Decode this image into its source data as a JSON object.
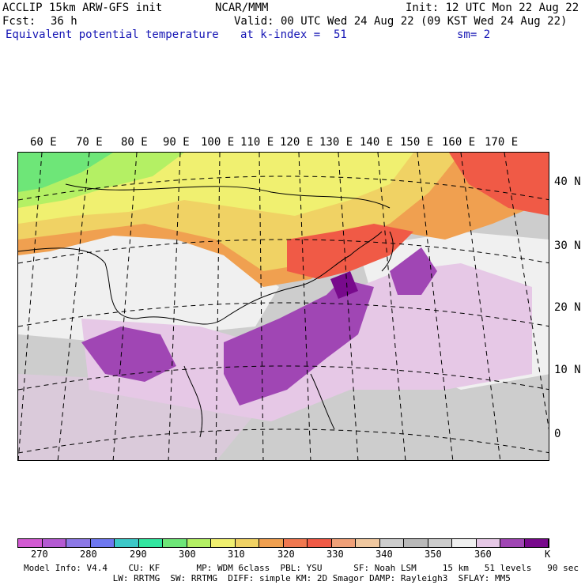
{
  "header": {
    "line1_left": "ACCLIP 15km ARW-GFS init",
    "line1_center": "NCAR/MMM",
    "line1_right": "Init: 12 UTC Mon 22 Aug 22",
    "fcst_label": "Fcst:",
    "fcst_value": "36 h",
    "valid": "Valid: 00 UTC Wed 24 Aug 22 (09 KST Wed 24 Aug 22)",
    "field": "Equivalent potential temperature",
    "level": "at k-index =  51",
    "smoothing": "sm= 2"
  },
  "map": {
    "lon_labels": [
      "60 E",
      "70 E",
      "80 E",
      "90 E",
      "100 E",
      "110 E",
      "120 E",
      "130 E",
      "140 E",
      "150 E",
      "160 E",
      "170 E"
    ],
    "lat_labels": [
      "40 N",
      "30 N",
      "20 N",
      "10 N",
      "0"
    ]
  },
  "colorbar": {
    "unit": "K",
    "tick_labels": [
      "270",
      "280",
      "290",
      "300",
      "310",
      "320",
      "330",
      "340",
      "350",
      "360"
    ],
    "colors": [
      "#d25ad2",
      "#b45ad2",
      "#8c78e6",
      "#6e78f0",
      "#3cc8c8",
      "#32e6a0",
      "#6ee678",
      "#b4f064",
      "#f0f070",
      "#f0d264",
      "#f0a050",
      "#f07850",
      "#f05a46",
      "#f0a078",
      "#f0c8a0",
      "#cdcdcd",
      "#b9b9b9",
      "#cdcdcd",
      "#f0f0f0",
      "#e6c8e6",
      "#a046b4",
      "#780a8c"
    ],
    "fill_colors": {
      "land_north": "#b4f064",
      "land_mid": "#f0f070",
      "warm": "#f0a050",
      "hot": "#f05a46",
      "grey": "#cdcdcd",
      "light": "#f0f0f0",
      "lilac": "#e6c8e6",
      "purple": "#a046b4",
      "deep": "#780a8c"
    }
  },
  "footer": {
    "line1": "Model Info: V4.4    CU: KF       MP: WDM 6class  PBL: YSU      SF: Noah LSM     15 km   51 levels   90 sec",
    "line2": "                 LW: RRTMG  SW: RRTMG  DIFF: simple KM: 2D Smagor DAMP: Rayleigh3  SFLAY: MM5"
  }
}
